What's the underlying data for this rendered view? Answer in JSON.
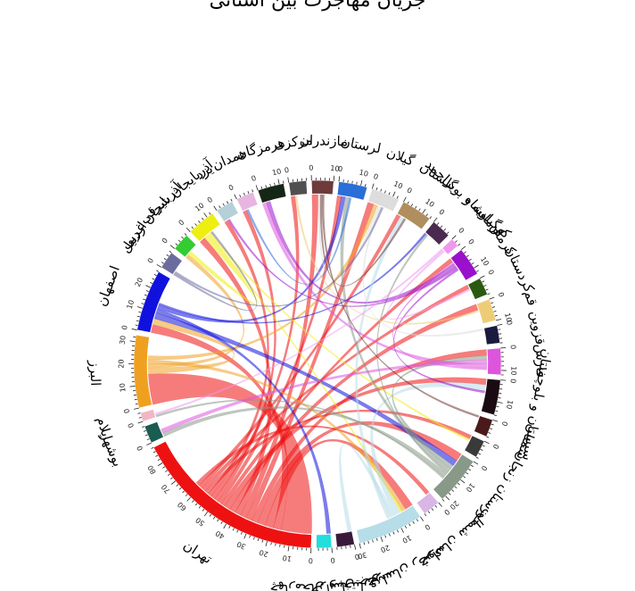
{
  "title": "جریان مهاجرت بین استانی",
  "chart_data": {
    "type": "chord",
    "groups": [
      {
        "name": "تهران",
        "color": "#ee1111",
        "size": 88
      },
      {
        "name": "بوشهر",
        "color": "#1a5c50",
        "size": 8
      },
      {
        "name": "ایلام",
        "color": "#f2b6c6",
        "size": 4
      },
      {
        "name": "البرز",
        "color": "#f0a020",
        "size": 33
      },
      {
        "name": "اصفهان",
        "color": "#1111dd",
        "size": 28
      },
      {
        "name": "اردبیل",
        "color": "#6b6b9e",
        "size": 8
      },
      {
        "name": "آذربایجان غربی",
        "color": "#33cc33",
        "size": 8
      },
      {
        "name": "آذربایجان شرقی",
        "color": "#eeee11",
        "size": 13
      },
      {
        "name": "یزد",
        "color": "#b6d0d8",
        "size": 8
      },
      {
        "name": "همدان",
        "color": "#e6b6e0",
        "size": 8
      },
      {
        "name": "هرمزگان",
        "color": "#162616",
        "size": 12
      },
      {
        "name": "مرکزی",
        "color": "#505050",
        "size": 8
      },
      {
        "name": "مازندران",
        "color": "#6e3a3a",
        "size": 10
      },
      {
        "name": "لرستان",
        "color": "#2a6ed8",
        "size": 13
      },
      {
        "name": "گیلان",
        "color": "#dddddd",
        "size": 13
      },
      {
        "name": "گلستان",
        "color": "#b08e5e",
        "size": 14
      },
      {
        "name": "کهگیلویه و بویراحمد",
        "color": "#4a2a4e",
        "size": 9
      },
      {
        "name": "کرمانشاه",
        "color": "#ee99ee",
        "size": 4
      },
      {
        "name": "کرمان",
        "color": "#9a11cc",
        "size": 13
      },
      {
        "name": "کردستان",
        "color": "#2a5a10",
        "size": 8
      },
      {
        "name": "قم",
        "color": "#eecc77",
        "size": 10
      },
      {
        "name": "قزوین",
        "color": "#1a1a3e",
        "size": 8
      },
      {
        "name": "فارس",
        "color": "#dd55dd",
        "size": 12
      },
      {
        "name": "سیستان و بلوچستان",
        "color": "#1a0a12",
        "size": 16
      },
      {
        "name": "سمنان",
        "color": "#4a1a1a",
        "size": 8
      },
      {
        "name": "زنجان",
        "color": "#3a3a3a",
        "size": 8
      },
      {
        "name": "خوزستان",
        "color": "#889988",
        "size": 22
      },
      {
        "name": "خراسان شمالی",
        "color": "#d8b6e6",
        "size": 8
      },
      {
        "name": "خراسان رضوی",
        "color": "#b6dde8",
        "size": 30
      },
      {
        "name": "خراسان جنوبی",
        "color": "#3a1a3a",
        "size": 8
      },
      {
        "name": "چهارمحال و بختیاری",
        "color": "#22dddd",
        "size": 7
      }
    ],
    "ticks": {
      "major_step": 10
    },
    "flows": [
      {
        "source": "تهران",
        "target": "البرز",
        "value": 15
      },
      {
        "source": "تهران",
        "target": "اصفهان",
        "value": 4
      },
      {
        "source": "تهران",
        "target": "خراسان رضوی",
        "value": 4
      },
      {
        "source": "تهران",
        "target": "خوزستان",
        "value": 4
      },
      {
        "source": "تهران",
        "target": "فارس",
        "value": 3
      },
      {
        "source": "تهران",
        "target": "گیلان",
        "value": 3
      },
      {
        "source": "تهران",
        "target": "مازندران",
        "value": 3
      },
      {
        "source": "تهران",
        "target": "آذربایجان شرقی",
        "value": 3
      },
      {
        "source": "تهران",
        "target": "قم",
        "value": 3
      },
      {
        "source": "تهران",
        "target": "سیستان و بلوچستان",
        "value": 3
      },
      {
        "source": "تهران",
        "target": "کرمان",
        "value": 2
      },
      {
        "source": "تهران",
        "target": "لرستان",
        "value": 2
      },
      {
        "source": "تهران",
        "target": "همدان",
        "value": 2
      },
      {
        "source": "تهران",
        "target": "مرکزی",
        "value": 2
      },
      {
        "source": "تهران",
        "target": "یزد",
        "value": 2
      },
      {
        "source": "تهران",
        "target": "زنجان",
        "value": 2
      },
      {
        "source": "تهران",
        "target": "کردستان",
        "value": 2
      },
      {
        "source": "تهران",
        "target": "گلستان",
        "value": 2
      },
      {
        "source": "تهران",
        "target": "خراسان شمالی",
        "value": 2
      },
      {
        "source": "البرز",
        "target": "اصفهان",
        "value": 3
      },
      {
        "source": "البرز",
        "target": "آذربایجان غربی",
        "value": 2
      },
      {
        "source": "البرز",
        "target": "خراسان رضوی",
        "value": 2
      },
      {
        "source": "البرز",
        "target": "گیلان",
        "value": 2
      },
      {
        "source": "اصفهان",
        "target": "خوزستان",
        "value": 3
      },
      {
        "source": "اصفهان",
        "target": "چهارمحال و بختیاری",
        "value": 2
      },
      {
        "source": "اصفهان",
        "target": "لرستان",
        "value": 2
      },
      {
        "source": "اصفهان",
        "target": "کهگیلویه و بویراحمد",
        "value": 1
      },
      {
        "source": "آذربایجان شرقی",
        "target": "آذربایجان غربی",
        "value": 2
      },
      {
        "source": "آذربایجان شرقی",
        "target": "خراسان رضوی",
        "value": 1
      },
      {
        "source": "آذربایجان شرقی",
        "target": "زنجان",
        "value": 1
      },
      {
        "source": "خراسان رضوی",
        "target": "سیستان و بلوچستان",
        "value": 3
      },
      {
        "source": "خراسان رضوی",
        "target": "خراسان جنوبی",
        "value": 2
      },
      {
        "source": "خراسان رضوی",
        "target": "گلستان",
        "value": 2
      },
      {
        "source": "خوزستان",
        "target": "فارس",
        "value": 2
      },
      {
        "source": "خوزستان",
        "target": "لرستان",
        "value": 2
      },
      {
        "source": "خوزستان",
        "target": "کهگیلویه و بویراحمد",
        "value": 1
      },
      {
        "source": "خوزستان",
        "target": "بوشهر",
        "value": 2
      },
      {
        "source": "خوزستان",
        "target": "ایلام",
        "value": 1
      },
      {
        "source": "فارس",
        "target": "بوشهر",
        "value": 2
      },
      {
        "source": "فارس",
        "target": "هرمزگان",
        "value": 2
      },
      {
        "source": "فارس",
        "target": "کرمان",
        "value": 1
      },
      {
        "source": "کرمان",
        "target": "هرمزگان",
        "value": 2
      },
      {
        "source": "کرمان",
        "target": "یزد",
        "value": 1
      },
      {
        "source": "کرمان",
        "target": "سیستان و بلوچستان",
        "value": 1
      },
      {
        "source": "گیلان",
        "target": "مازندران",
        "value": 1
      },
      {
        "source": "گیلان",
        "target": "قزوین",
        "value": 1
      },
      {
        "source": "مازندران",
        "target": "گلستان",
        "value": 1
      },
      {
        "source": "مازندران",
        "target": "سمنان",
        "value": 1
      },
      {
        "source": "لرستان",
        "target": "همدان",
        "value": 1
      },
      {
        "source": "کرمانشاه",
        "target": "ایلام",
        "value": 1
      },
      {
        "source": "کرمانشاه",
        "target": "کردستان",
        "value": 1
      },
      {
        "source": "قم",
        "target": "مرکزی",
        "value": 1
      },
      {
        "source": "اردبیل",
        "target": "آذربایجان شرقی",
        "value": 1
      },
      {
        "source": "اردبیل",
        "target": "گیلان",
        "value": 1
      }
    ]
  }
}
